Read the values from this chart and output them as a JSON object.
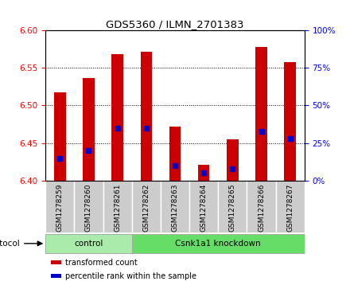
{
  "title": "GDS5360 / ILMN_2701383",
  "samples": [
    "GSM1278259",
    "GSM1278260",
    "GSM1278261",
    "GSM1278262",
    "GSM1278263",
    "GSM1278264",
    "GSM1278265",
    "GSM1278266",
    "GSM1278267"
  ],
  "transformed_counts": [
    6.518,
    6.537,
    6.568,
    6.572,
    6.472,
    6.421,
    6.455,
    6.578,
    6.558
  ],
  "percentile_ranks": [
    15,
    20,
    35,
    35,
    10,
    5,
    8,
    33,
    28
  ],
  "ylim_left": [
    6.4,
    6.6
  ],
  "ylim_right": [
    0,
    100
  ],
  "yticks_left": [
    6.4,
    6.45,
    6.5,
    6.55,
    6.6
  ],
  "yticks_right": [
    0,
    25,
    50,
    75,
    100
  ],
  "bar_color": "#cc0000",
  "percentile_color": "#0000cc",
  "bar_bottom": 6.4,
  "groups": [
    {
      "label": "control",
      "start": 0,
      "end": 3,
      "color": "#aaeaaa"
    },
    {
      "label": "Csnk1a1 knockdown",
      "start": 3,
      "end": 9,
      "color": "#66dd66"
    }
  ],
  "protocol_label": "protocol",
  "legend_items": [
    {
      "label": "transformed count",
      "color": "#cc0000"
    },
    {
      "label": "percentile rank within the sample",
      "color": "#0000cc"
    }
  ],
  "cell_bg": "#cccccc",
  "plot_bg": "#ffffff"
}
